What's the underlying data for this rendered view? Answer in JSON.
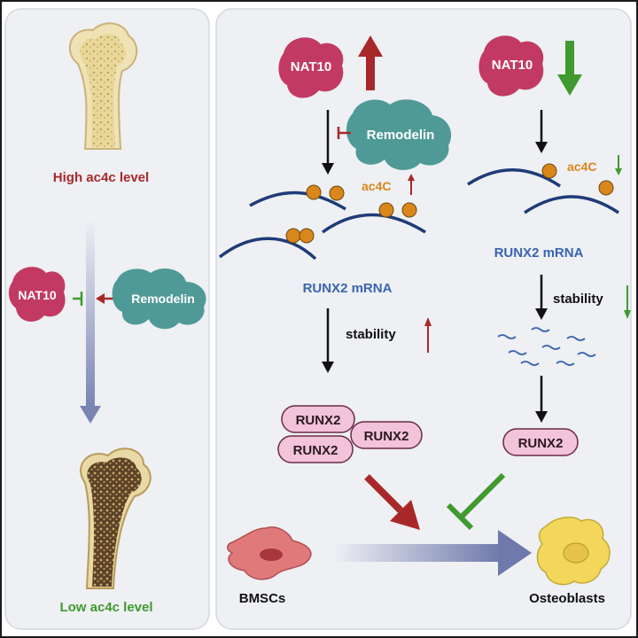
{
  "left_panel": {
    "high_label": "High ac4c level",
    "low_label": "Low ac4c level",
    "nat10": "NAT10",
    "remodelin": "Remodelin"
  },
  "top_left_pathway": {
    "nat10": "NAT10",
    "remodelin": "Remodelin",
    "ac4c": "ac4C",
    "mrna_label": "RUNX2 mRNA",
    "stability": "stability",
    "runx2_a": "RUNX2",
    "runx2_b": "RUNX2",
    "runx2_c": "RUNX2"
  },
  "top_right_pathway": {
    "nat10": "NAT10",
    "ac4c": "ac4C",
    "mrna_label": "RUNX2 mRNA",
    "stability": "stability",
    "runx2": "RUNX2"
  },
  "bottom": {
    "bmscs": "BMSCs",
    "osteoblasts": "Osteoblasts"
  },
  "colors": {
    "panel_bg": "#eef0f3",
    "panel_border": "#d4d8de",
    "nat10": "#c23a63",
    "remodelin": "#4f9a97",
    "up_red": "#a8282a",
    "down_green": "#3f9a2f",
    "mrna_blue": "#1f3b78",
    "ac4c_orange": "#d9861b",
    "label_blue": "#3a64b0",
    "runx2_pill": "#f2c3d9",
    "gradient_arrow": "#6f79ab"
  }
}
